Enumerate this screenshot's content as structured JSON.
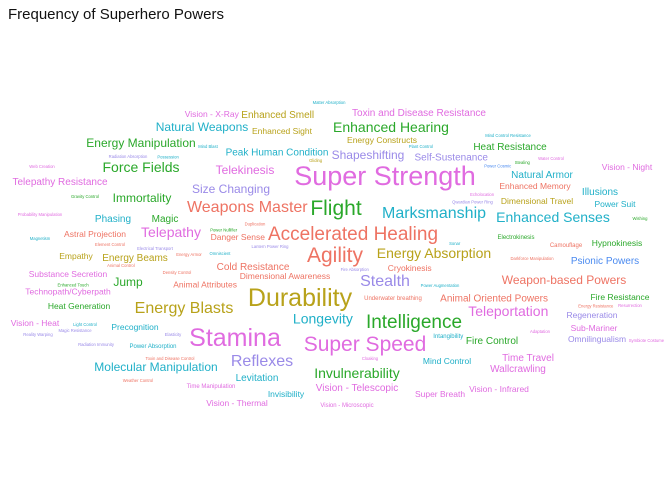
{
  "chart_data": {
    "type": "wordcloud",
    "title": "Frequency of Superhero Powers",
    "words": [
      {
        "text": "Super Strength",
        "weight": 100,
        "color": "#e06be0"
      },
      {
        "text": "Stamina",
        "weight": 86,
        "color": "#e06be0"
      },
      {
        "text": "Durability",
        "weight": 84,
        "color": "#b8a21a"
      },
      {
        "text": "Super Speed",
        "weight": 78,
        "color": "#e06be0"
      },
      {
        "text": "Agility",
        "weight": 76,
        "color": "#ee7363"
      },
      {
        "text": "Flight",
        "weight": 70,
        "color": "#2aa82a"
      },
      {
        "text": "Accelerated Healing",
        "weight": 66,
        "color": "#ee7363"
      },
      {
        "text": "Intelligence",
        "weight": 62,
        "color": "#2aa82a"
      },
      {
        "text": "Reflexes",
        "weight": 56,
        "color": "#9a8ae8"
      },
      {
        "text": "Energy Blasts",
        "weight": 55,
        "color": "#b8a21a"
      },
      {
        "text": "Stealth",
        "weight": 52,
        "color": "#9a8ae8"
      },
      {
        "text": "Marksmanship",
        "weight": 51,
        "color": "#20b0c8"
      },
      {
        "text": "Weapons Master",
        "weight": 50,
        "color": "#ee7363"
      },
      {
        "text": "Invulnerability",
        "weight": 48,
        "color": "#2aa82a"
      },
      {
        "text": "Longevity",
        "weight": 46,
        "color": "#20b0c8"
      },
      {
        "text": "Enhanced Senses",
        "weight": 45,
        "color": "#20b0c8"
      },
      {
        "text": "Teleportation",
        "weight": 44,
        "color": "#e06be0"
      },
      {
        "text": "Force Fields",
        "weight": 43,
        "color": "#2aa82a"
      },
      {
        "text": "Telepathy",
        "weight": 42,
        "color": "#e06be0"
      },
      {
        "text": "Enhanced Hearing",
        "weight": 41,
        "color": "#2aa82a"
      },
      {
        "text": "Energy Absorption",
        "weight": 40,
        "color": "#b8a21a"
      },
      {
        "text": "Weapon-based Powers",
        "weight": 37,
        "color": "#ee7363"
      },
      {
        "text": "Shapeshifting",
        "weight": 37,
        "color": "#9a8ae8"
      },
      {
        "text": "Immortality",
        "weight": 36,
        "color": "#2aa82a"
      },
      {
        "text": "Jump",
        "weight": 36,
        "color": "#2aa82a"
      },
      {
        "text": "Energy Manipulation",
        "weight": 35,
        "color": "#2aa82a"
      },
      {
        "text": "Natural Weapons",
        "weight": 35,
        "color": "#20b0c8"
      },
      {
        "text": "Molecular Manipulation",
        "weight": 34,
        "color": "#20b0c8"
      },
      {
        "text": "Size Changing",
        "weight": 34,
        "color": "#9a8ae8"
      },
      {
        "text": "Telekinesis",
        "weight": 33,
        "color": "#e06be0"
      },
      {
        "text": "Psionic Powers",
        "weight": 32,
        "color": "#4a8af0"
      },
      {
        "text": "Energy Beams",
        "weight": 31,
        "color": "#b8a21a"
      },
      {
        "text": "Magic",
        "weight": 31,
        "color": "#2aa82a"
      },
      {
        "text": "Cold Resistance",
        "weight": 30,
        "color": "#ee7363"
      },
      {
        "text": "Phasing",
        "weight": 30,
        "color": "#20b0c8"
      },
      {
        "text": "Fire Control",
        "weight": 30,
        "color": "#2aa82a"
      },
      {
        "text": "Wallcrawling",
        "weight": 30,
        "color": "#e06be0"
      },
      {
        "text": "Time Travel",
        "weight": 29,
        "color": "#e06be0"
      },
      {
        "text": "Heat Resistance",
        "weight": 29,
        "color": "#2aa82a"
      },
      {
        "text": "Vision - Telescopic",
        "weight": 28,
        "color": "#e06be0"
      },
      {
        "text": "Toxin and Disease Resistance",
        "weight": 28,
        "color": "#e06be0"
      },
      {
        "text": "Natural Armor",
        "weight": 28,
        "color": "#20b0c8"
      },
      {
        "text": "Self-Sustenance",
        "weight": 27,
        "color": "#9a8ae8"
      },
      {
        "text": "Peak Human Condition",
        "weight": 27,
        "color": "#20b0c8"
      },
      {
        "text": "Enhanced Smell",
        "weight": 27,
        "color": "#b8a21a"
      },
      {
        "text": "Levitation",
        "weight": 26,
        "color": "#20b0c8"
      },
      {
        "text": "Illusions",
        "weight": 26,
        "color": "#20b0c8"
      },
      {
        "text": "Telepathy Resistance",
        "weight": 26,
        "color": "#e06be0"
      },
      {
        "text": "Animal Oriented Powers",
        "weight": 26,
        "color": "#ee7363"
      },
      {
        "text": "Energy Constructs",
        "weight": 25,
        "color": "#b8a21a"
      },
      {
        "text": "Vision - Night",
        "weight": 25,
        "color": "#e06be0"
      },
      {
        "text": "Danger Sense",
        "weight": 25,
        "color": "#ee7363"
      },
      {
        "text": "Astral Projection",
        "weight": 25,
        "color": "#ee7363"
      },
      {
        "text": "Dimensional Awareness",
        "weight": 24,
        "color": "#ee7363"
      },
      {
        "text": "Mind Control",
        "weight": 24,
        "color": "#20b0c8"
      },
      {
        "text": "Power Suit",
        "weight": 24,
        "color": "#20b0c8"
      },
      {
        "text": "Vision - Heat",
        "weight": 24,
        "color": "#e06be0"
      },
      {
        "text": "Vision - Infrared",
        "weight": 23,
        "color": "#e06be0"
      },
      {
        "text": "Invisibility",
        "weight": 23,
        "color": "#20b0c8"
      },
      {
        "text": "Vision - Thermal",
        "weight": 23,
        "color": "#e06be0"
      },
      {
        "text": "Vision - X-Ray",
        "weight": 22,
        "color": "#e06be0"
      },
      {
        "text": "Regeneration",
        "weight": 22,
        "color": "#9a8ae8"
      },
      {
        "text": "Hypnokinesis",
        "weight": 22,
        "color": "#2aa82a"
      },
      {
        "text": "Omnilingualism",
        "weight": 22,
        "color": "#9a8ae8"
      },
      {
        "text": "Cryokinesis",
        "weight": 22,
        "color": "#ee7363"
      },
      {
        "text": "Precognition",
        "weight": 22,
        "color": "#20b0c8"
      },
      {
        "text": "Fire Resistance",
        "weight": 21,
        "color": "#2aa82a"
      },
      {
        "text": "Sub-Mariner",
        "weight": 21,
        "color": "#e06be0"
      },
      {
        "text": "Super Breath",
        "weight": 21,
        "color": "#e06be0"
      },
      {
        "text": "Enhanced Memory",
        "weight": 21,
        "color": "#ee7363"
      },
      {
        "text": "Dimensional Travel",
        "weight": 21,
        "color": "#b8a21a"
      },
      {
        "text": "Animal Attributes",
        "weight": 21,
        "color": "#ee7363"
      },
      {
        "text": "Enhanced Sight",
        "weight": 21,
        "color": "#b8a21a"
      },
      {
        "text": "Empathy",
        "weight": 21,
        "color": "#b8a21a"
      },
      {
        "text": "Substance Secretion",
        "weight": 21,
        "color": "#e06be0"
      },
      {
        "text": "Technopath/Cyberpath",
        "weight": 21,
        "color": "#e06be0"
      },
      {
        "text": "Heat Generation",
        "weight": 21,
        "color": "#2aa82a"
      },
      {
        "text": "Camouflage",
        "weight": 20,
        "color": "#ee7363"
      },
      {
        "text": "Electrokinesis",
        "weight": 20,
        "color": "#2aa82a"
      },
      {
        "text": "Time Manipulation",
        "weight": 20,
        "color": "#e06be0"
      },
      {
        "text": "Vision - Microscopic",
        "weight": 20,
        "color": "#e06be0"
      },
      {
        "text": "Underwater breathing",
        "weight": 20,
        "color": "#ee7363"
      },
      {
        "text": "Power Absorption",
        "weight": 20,
        "color": "#20b0c8"
      },
      {
        "text": "Intangibility",
        "weight": 20,
        "color": "#20b0c8"
      },
      {
        "text": "Toxin and Disease Control",
        "weight": 18,
        "color": "#ee7363"
      },
      {
        "text": "Weather Control",
        "weight": 18,
        "color": "#ee7363"
      },
      {
        "text": "Density Control",
        "weight": 18,
        "color": "#ee7363"
      },
      {
        "text": "Darkforce Manipulation",
        "weight": 18,
        "color": "#ee7363"
      },
      {
        "text": "Reality Warping",
        "weight": 18,
        "color": "#9a8ae8"
      },
      {
        "text": "Probability Manipulation",
        "weight": 18,
        "color": "#e06be0"
      },
      {
        "text": "Water Control",
        "weight": 18,
        "color": "#e06be0"
      },
      {
        "text": "Light Control",
        "weight": 18,
        "color": "#20b0c8"
      },
      {
        "text": "Duplication",
        "weight": 18,
        "color": "#ee7363"
      },
      {
        "text": "Element Control",
        "weight": 18,
        "color": "#ee7363"
      },
      {
        "text": "Mind Blast",
        "weight": 18,
        "color": "#20b0c8"
      },
      {
        "text": "Gravity Control",
        "weight": 18,
        "color": "#2aa82a"
      },
      {
        "text": "Lantern Power Ring",
        "weight": 18,
        "color": "#9a8ae8"
      },
      {
        "text": "Symbiote Costume",
        "weight": 18,
        "color": "#e06be0"
      },
      {
        "text": "Elasticity",
        "weight": 18,
        "color": "#9a8ae8"
      },
      {
        "text": "Radiation Immunity",
        "weight": 18,
        "color": "#9a8ae8"
      },
      {
        "text": "Magnetism",
        "weight": 18,
        "color": "#20b0c8"
      },
      {
        "text": "Mind Control Resistance",
        "weight": 18,
        "color": "#20b0c8"
      },
      {
        "text": "Web Creation",
        "weight": 18,
        "color": "#e06be0"
      },
      {
        "text": "Resurrection",
        "weight": 18,
        "color": "#e06be0"
      },
      {
        "text": "Power Augmentation",
        "weight": 18,
        "color": "#20b0c8"
      },
      {
        "text": "Magic Resistance",
        "weight": 18,
        "color": "#9a8ae8"
      },
      {
        "text": "Energy Armor",
        "weight": 18,
        "color": "#ee7363"
      },
      {
        "text": "Adaptation",
        "weight": 18,
        "color": "#e06be0"
      },
      {
        "text": "Plant Control",
        "weight": 18,
        "color": "#20b0c8"
      },
      {
        "text": "Matter Absorption",
        "weight": 18,
        "color": "#20b0c8"
      },
      {
        "text": "Power Cosmic",
        "weight": 18,
        "color": "#4a8af0"
      },
      {
        "text": "Animal Control",
        "weight": 18,
        "color": "#ee7363"
      },
      {
        "text": "Radiation Absorption",
        "weight": 18,
        "color": "#9a8ae8"
      },
      {
        "text": "Possession",
        "weight": 18,
        "color": "#20b0c8"
      },
      {
        "text": "Echolocation",
        "weight": 18,
        "color": "#e06be0"
      },
      {
        "text": "Cloaking",
        "weight": 18,
        "color": "#e06be0"
      },
      {
        "text": "Enhanced Touch",
        "weight": 18,
        "color": "#2aa82a"
      },
      {
        "text": "Gliding",
        "weight": 18,
        "color": "#b8a21a"
      },
      {
        "text": "Sonar",
        "weight": 18,
        "color": "#20b0c8"
      },
      {
        "text": "Stealing",
        "weight": 18,
        "color": "#2aa82a"
      },
      {
        "text": "Power Nullifier",
        "weight": 18,
        "color": "#2aa82a"
      },
      {
        "text": "Energy Resistance",
        "weight": 18,
        "color": "#ee7363"
      },
      {
        "text": "Electrical Transport",
        "weight": 18,
        "color": "#9a8ae8"
      },
      {
        "text": "Qwardian Power Ring",
        "weight": 18,
        "color": "#9a8ae8"
      },
      {
        "text": "Omniscient",
        "weight": 18,
        "color": "#20b0c8"
      },
      {
        "text": "Wishing",
        "weight": 18,
        "color": "#2aa82a"
      },
      {
        "text": "Fire Absorption",
        "weight": 18,
        "color": "#9a8ae8"
      }
    ]
  }
}
